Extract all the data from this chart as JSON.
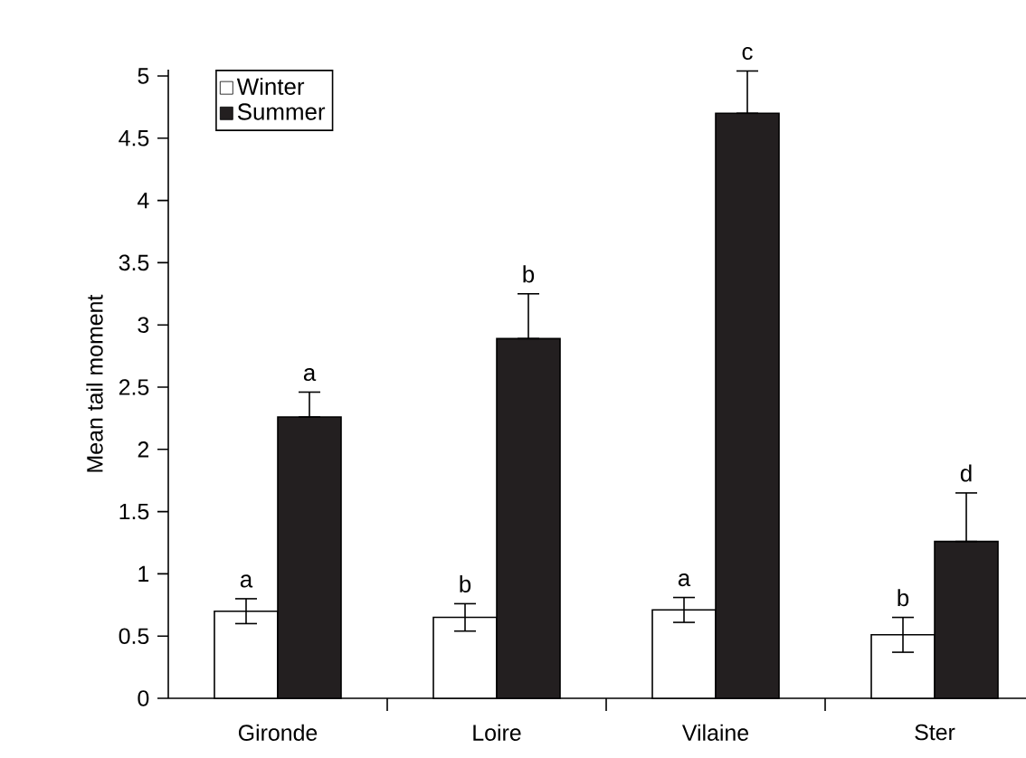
{
  "chart_data": {
    "type": "bar",
    "ylabel": "Mean tail moment",
    "categories": [
      "Gironde",
      "Loire",
      "Vilaine",
      "Ster"
    ],
    "series": [
      {
        "name": "Winter",
        "color": "#ffffff",
        "values": [
          0.7,
          0.65,
          0.71,
          0.51
        ],
        "errors": [
          0.1,
          0.11,
          0.1,
          0.14
        ]
      },
      {
        "name": "Summer",
        "color": "#231f20",
        "values": [
          2.26,
          2.89,
          4.7,
          1.26
        ],
        "errors": [
          [
            2.26,
            2.46
          ],
          [
            2.89,
            3.25
          ],
          [
            4.7,
            5.04
          ],
          [
            1.26,
            1.65
          ]
        ]
      }
    ],
    "ylim": [
      0,
      5.05
    ],
    "yticks": [
      0,
      0.5,
      1,
      1.5,
      2,
      2.5,
      3,
      3.5,
      4,
      4.5,
      5
    ],
    "legend": "top left",
    "annotations": [
      {
        "text": "a",
        "x": "Gironde",
        "y": 0.7
      },
      {
        "text": "a",
        "x": "Gironde",
        "y": 2.26
      },
      {
        "text": "b",
        "x": "Loire",
        "y": 0.65
      },
      {
        "text": "b",
        "x": "Loire",
        "y": 2.89
      },
      {
        "text": "a",
        "x": "Vilaine",
        "y": 0.71
      },
      {
        "text": "c",
        "x": "Vilaine",
        "y": 4.7
      },
      {
        "text": "b",
        "x": "Ster",
        "y": 0.51
      },
      {
        "text": "d",
        "x": "Ster",
        "y": 1.26
      }
    ]
  }
}
